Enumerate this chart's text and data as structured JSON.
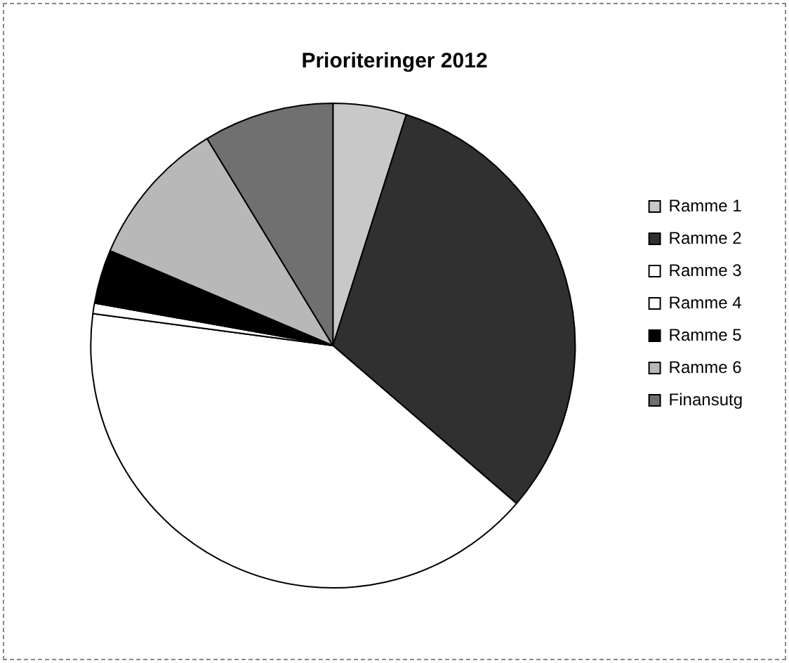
{
  "chart_data": {
    "type": "pie",
    "title": "Prioriteringer 2012",
    "categories": [
      "Ramme 1",
      "Ramme 2",
      "Ramme 3",
      "Ramme 4",
      "Ramme 5",
      "Ramme 6",
      "Finansutg"
    ],
    "values": [
      4.9,
      31.4,
      40.8,
      0.7,
      3.6,
      9.9,
      8.7
    ],
    "colors": [
      "#c8c8c8",
      "#303030",
      "#ffffff",
      "#ffffff",
      "#000000",
      "#b8b8b8",
      "#707070"
    ],
    "legend": "right"
  }
}
